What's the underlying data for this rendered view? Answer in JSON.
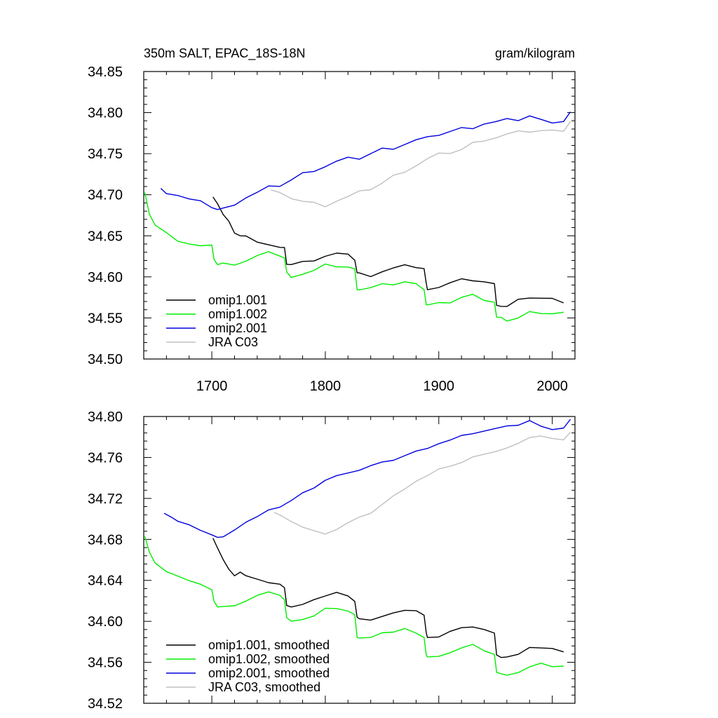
{
  "chart_data": [
    {
      "type": "line",
      "title": "350m SALT, EPAC_18S-18N",
      "units": "gram/kilogram",
      "xlim": [
        1640,
        2020
      ],
      "ylim": [
        34.5,
        34.85
      ],
      "x_ticks": [
        1700,
        1800,
        1900,
        2000
      ],
      "x_tick_labels": [
        "1700",
        "1800",
        "1900",
        "2000"
      ],
      "y_ticks": [
        34.5,
        34.55,
        34.6,
        34.65,
        34.7,
        34.75,
        34.8,
        34.85
      ],
      "y_tick_labels": [
        "34.50",
        "34.55",
        "34.60",
        "34.65",
        "34.70",
        "34.75",
        "34.80",
        "34.85"
      ],
      "grid": false,
      "legend_position": "bottom-left",
      "series": [
        {
          "name": "omip1.001",
          "color": "#000000",
          "x": [
            1701,
            1705,
            1710,
            1715,
            1720,
            1725,
            1730,
            1740,
            1750,
            1760,
            1764,
            1766,
            1770,
            1780,
            1790,
            1800,
            1810,
            1820,
            1826,
            1828,
            1830,
            1840,
            1850,
            1860,
            1870,
            1880,
            1887,
            1889,
            1890,
            1900,
            1910,
            1920,
            1930,
            1940,
            1949,
            1951,
            1955,
            1960,
            1970,
            1980,
            1990,
            2000,
            2010
          ],
          "y": [
            34.7,
            34.69,
            34.675,
            34.665,
            34.655,
            34.65,
            34.648,
            34.645,
            34.64,
            34.635,
            34.633,
            34.617,
            34.615,
            34.617,
            34.622,
            34.626,
            34.628,
            34.625,
            34.622,
            34.605,
            34.603,
            34.603,
            34.607,
            34.61,
            34.612,
            34.613,
            34.61,
            34.59,
            34.587,
            34.588,
            34.592,
            34.595,
            34.597,
            34.594,
            34.59,
            34.568,
            34.565,
            34.563,
            34.57,
            34.576,
            34.574,
            34.572,
            34.571
          ]
        },
        {
          "name": "omip1.002",
          "color": "#00ee00",
          "x": [
            1641,
            1645,
            1650,
            1660,
            1670,
            1680,
            1690,
            1700,
            1702,
            1705,
            1710,
            1720,
            1730,
            1740,
            1750,
            1760,
            1764,
            1766,
            1770,
            1780,
            1790,
            1800,
            1810,
            1820,
            1826,
            1828,
            1830,
            1840,
            1850,
            1860,
            1870,
            1880,
            1887,
            1889,
            1890,
            1900,
            1910,
            1920,
            1930,
            1940,
            1949,
            1951,
            1955,
            1960,
            1970,
            1980,
            1990,
            2000,
            2010
          ],
          "y": [
            34.7,
            34.678,
            34.663,
            34.652,
            34.646,
            34.641,
            34.637,
            34.636,
            34.623,
            34.615,
            34.615,
            34.617,
            34.62,
            34.625,
            34.628,
            34.627,
            34.623,
            34.604,
            34.602,
            34.604,
            34.607,
            34.613,
            34.614,
            34.612,
            34.608,
            34.587,
            34.585,
            34.586,
            34.589,
            34.592,
            34.594,
            34.59,
            34.587,
            34.567,
            34.565,
            34.566,
            34.57,
            34.575,
            34.577,
            34.574,
            34.57,
            34.55,
            34.548,
            34.548,
            34.55,
            34.556,
            34.558,
            34.556,
            34.556
          ]
        },
        {
          "name": "omip2.001",
          "color": "#0000dd",
          "x": [
            1655,
            1660,
            1670,
            1680,
            1690,
            1700,
            1705,
            1710,
            1720,
            1730,
            1740,
            1750,
            1760,
            1770,
            1780,
            1790,
            1800,
            1810,
            1820,
            1830,
            1840,
            1850,
            1860,
            1870,
            1880,
            1890,
            1900,
            1910,
            1920,
            1930,
            1940,
            1950,
            1960,
            1970,
            1980,
            1990,
            2000,
            2010,
            2016
          ],
          "y": [
            34.706,
            34.704,
            34.7,
            34.694,
            34.69,
            34.686,
            34.682,
            34.682,
            34.69,
            34.697,
            34.702,
            34.708,
            34.712,
            34.718,
            34.725,
            34.731,
            34.735,
            34.74,
            34.743,
            34.745,
            34.75,
            34.755,
            34.758,
            34.762,
            34.766,
            34.768,
            34.774,
            34.777,
            34.78,
            34.783,
            34.787,
            34.788,
            34.79,
            34.792,
            34.796,
            34.79,
            34.79,
            34.79,
            34.8
          ]
        },
        {
          "name": "JRA C03",
          "color": "#c0c0c0",
          "x": [
            1752,
            1760,
            1770,
            1780,
            1790,
            1800,
            1810,
            1820,
            1830,
            1840,
            1850,
            1860,
            1870,
            1880,
            1890,
            1900,
            1910,
            1920,
            1930,
            1940,
            1950,
            1960,
            1970,
            1980,
            1990,
            2000,
            2010,
            2016
          ],
          "y": [
            34.705,
            34.7,
            34.697,
            34.692,
            34.689,
            34.688,
            34.693,
            34.697,
            34.702,
            34.708,
            34.714,
            34.722,
            34.73,
            34.736,
            34.743,
            34.748,
            34.752,
            34.755,
            34.762,
            34.768,
            34.77,
            34.773,
            34.775,
            34.778,
            34.778,
            34.777,
            34.78,
            34.79
          ]
        }
      ]
    },
    {
      "type": "line",
      "xlim": [
        1640,
        2020
      ],
      "ylim": [
        34.52,
        34.8
      ],
      "x_ticks": [
        1700,
        1800,
        1900,
        2000
      ],
      "y_ticks": [
        34.52,
        34.56,
        34.6,
        34.64,
        34.68,
        34.72,
        34.76,
        34.8
      ],
      "y_tick_labels": [
        "34.52",
        "34.56",
        "34.60",
        "34.64",
        "34.68",
        "34.72",
        "34.76",
        "34.80"
      ],
      "grid": false,
      "legend_position": "bottom-left",
      "series": [
        {
          "name": "omip1.001, smoothed",
          "color": "#000000",
          "x": [
            1701,
            1705,
            1710,
            1715,
            1720,
            1725,
            1730,
            1740,
            1750,
            1760,
            1764,
            1766,
            1770,
            1780,
            1790,
            1800,
            1810,
            1820,
            1826,
            1828,
            1830,
            1840,
            1850,
            1860,
            1870,
            1880,
            1887,
            1889,
            1890,
            1900,
            1910,
            1920,
            1930,
            1940,
            1949,
            1951,
            1955,
            1960,
            1970,
            1980,
            1990,
            2000,
            2010
          ],
          "y": [
            34.682,
            34.672,
            34.66,
            34.65,
            34.645,
            34.648,
            34.644,
            34.642,
            34.638,
            34.636,
            34.632,
            34.616,
            34.614,
            34.616,
            34.622,
            34.625,
            34.628,
            34.624,
            34.62,
            34.604,
            34.602,
            34.602,
            34.605,
            34.608,
            34.61,
            34.611,
            34.606,
            34.588,
            34.585,
            34.585,
            34.59,
            34.593,
            34.595,
            34.592,
            34.588,
            34.568,
            34.565,
            34.565,
            34.567,
            34.575,
            34.574,
            34.573,
            34.571
          ]
        },
        {
          "name": "omip1.002, smoothed",
          "color": "#00ee00",
          "x": [
            1641,
            1645,
            1650,
            1660,
            1670,
            1680,
            1690,
            1700,
            1702,
            1705,
            1710,
            1720,
            1730,
            1740,
            1750,
            1760,
            1764,
            1766,
            1770,
            1780,
            1790,
            1800,
            1810,
            1820,
            1826,
            1828,
            1830,
            1840,
            1850,
            1860,
            1870,
            1880,
            1887,
            1889,
            1890,
            1900,
            1910,
            1920,
            1930,
            1940,
            1949,
            1951,
            1955,
            1960,
            1970,
            1980,
            1990,
            2000,
            2010
          ],
          "y": [
            34.682,
            34.668,
            34.657,
            34.648,
            34.645,
            34.64,
            34.636,
            34.63,
            34.62,
            34.614,
            34.614,
            34.616,
            34.62,
            34.625,
            34.628,
            34.626,
            34.621,
            34.603,
            34.601,
            34.602,
            34.605,
            34.612,
            34.613,
            34.61,
            34.606,
            34.585,
            34.584,
            34.584,
            34.588,
            34.59,
            34.593,
            34.588,
            34.585,
            34.567,
            34.565,
            34.565,
            34.57,
            34.574,
            34.577,
            34.572,
            34.568,
            34.55,
            34.548,
            34.548,
            34.55,
            34.555,
            34.56,
            34.556,
            34.556
          ]
        },
        {
          "name": "omip2.001, smoothed",
          "color": "#0000dd",
          "x": [
            1658,
            1665,
            1670,
            1680,
            1690,
            1700,
            1705,
            1710,
            1720,
            1730,
            1740,
            1750,
            1760,
            1770,
            1780,
            1790,
            1800,
            1810,
            1820,
            1830,
            1840,
            1850,
            1860,
            1870,
            1880,
            1890,
            1900,
            1910,
            1920,
            1930,
            1940,
            1950,
            1960,
            1970,
            1980,
            1990,
            2000,
            2010,
            2016
          ],
          "y": [
            34.705,
            34.702,
            34.698,
            34.694,
            34.688,
            34.685,
            34.682,
            34.682,
            34.69,
            34.697,
            34.702,
            34.708,
            34.712,
            34.718,
            34.725,
            34.731,
            34.738,
            34.742,
            34.744,
            34.748,
            34.752,
            34.755,
            34.758,
            34.762,
            34.766,
            34.768,
            34.774,
            34.777,
            34.781,
            34.784,
            34.786,
            34.788,
            34.79,
            34.792,
            34.796,
            34.79,
            34.788,
            34.789,
            34.797
          ]
        },
        {
          "name": "JRA C03, smoothed",
          "color": "#c0c0c0",
          "x": [
            1755,
            1760,
            1770,
            1780,
            1790,
            1800,
            1810,
            1820,
            1830,
            1840,
            1850,
            1860,
            1870,
            1880,
            1890,
            1900,
            1910,
            1920,
            1930,
            1940,
            1950,
            1960,
            1970,
            1980,
            1990,
            2000,
            2010,
            2016
          ],
          "y": [
            34.706,
            34.703,
            34.698,
            34.692,
            34.688,
            34.686,
            34.69,
            34.696,
            34.701,
            34.706,
            34.714,
            34.722,
            34.73,
            34.737,
            34.742,
            34.748,
            34.752,
            34.755,
            34.76,
            34.764,
            34.766,
            34.769,
            34.773,
            34.78,
            34.781,
            34.778,
            34.778,
            34.785
          ]
        }
      ]
    }
  ]
}
